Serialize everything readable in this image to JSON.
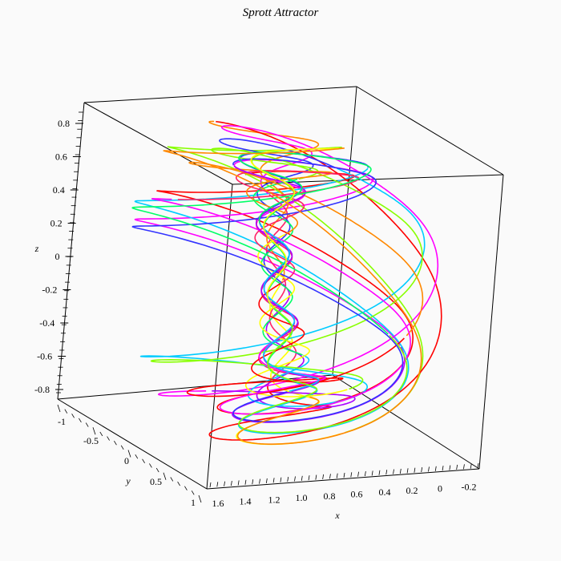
{
  "chart_data": {
    "type": "line",
    "title": "Sprott Attractor",
    "xlabel": "x",
    "ylabel": "y",
    "zlabel": "z",
    "x_ticks": [
      "1.6",
      "1.4",
      "1.2",
      "1.0",
      "0.8",
      "0.6",
      "0.4",
      "0.2",
      "0",
      "-0.2"
    ],
    "y_ticks": [
      "-1",
      "-0.5",
      "0",
      "0.5",
      "1"
    ],
    "z_ticks": [
      "0.8",
      "0.6",
      "0.4",
      "0.2",
      "0",
      "-0.2",
      "-0.4",
      "-0.6",
      "-0.8"
    ],
    "xlim": [
      -0.3,
      1.7
    ],
    "ylim": [
      -1.1,
      1.0
    ],
    "zlim": [
      -1.0,
      0.9
    ],
    "series_colors": [
      "#ff0000",
      "#ff2266",
      "#ff00ff",
      "#aa00ff",
      "#3333ff",
      "#00ccff",
      "#00ff66",
      "#88ff00",
      "#ffff00",
      "#ff8800"
    ],
    "grid": false
  }
}
